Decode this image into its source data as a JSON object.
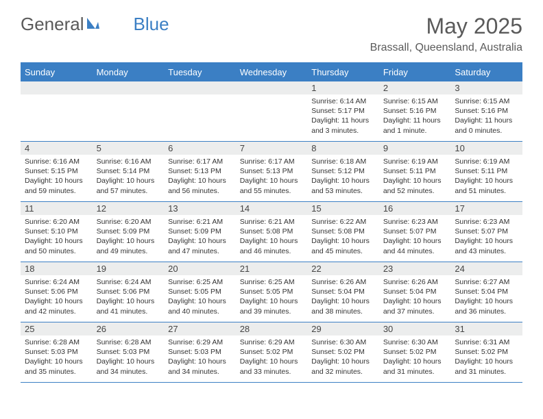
{
  "logo": {
    "text1": "General",
    "text2": "Blue"
  },
  "title": "May 2025",
  "location": "Brassall, Queensland, Australia",
  "colors": {
    "accent": "#3b7fc4",
    "header_text": "#5a5a5a",
    "daynum_bg": "#eceded",
    "body_text": "#333333",
    "page_bg": "#ffffff"
  },
  "typography": {
    "month_title_fontsize": 32,
    "location_fontsize": 16,
    "logo_fontsize": 26,
    "weekday_fontsize": 13,
    "daynum_fontsize": 13,
    "cell_fontsize": 10.5
  },
  "weekdays": [
    "Sunday",
    "Monday",
    "Tuesday",
    "Wednesday",
    "Thursday",
    "Friday",
    "Saturday"
  ],
  "weeks": [
    [
      {
        "num": "",
        "text": ""
      },
      {
        "num": "",
        "text": ""
      },
      {
        "num": "",
        "text": ""
      },
      {
        "num": "",
        "text": ""
      },
      {
        "num": "1",
        "text": "Sunrise: 6:14 AM\nSunset: 5:17 PM\nDaylight: 11 hours and 3 minutes."
      },
      {
        "num": "2",
        "text": "Sunrise: 6:15 AM\nSunset: 5:16 PM\nDaylight: 11 hours and 1 minute."
      },
      {
        "num": "3",
        "text": "Sunrise: 6:15 AM\nSunset: 5:16 PM\nDaylight: 11 hours and 0 minutes."
      }
    ],
    [
      {
        "num": "4",
        "text": "Sunrise: 6:16 AM\nSunset: 5:15 PM\nDaylight: 10 hours and 59 minutes."
      },
      {
        "num": "5",
        "text": "Sunrise: 6:16 AM\nSunset: 5:14 PM\nDaylight: 10 hours and 57 minutes."
      },
      {
        "num": "6",
        "text": "Sunrise: 6:17 AM\nSunset: 5:13 PM\nDaylight: 10 hours and 56 minutes."
      },
      {
        "num": "7",
        "text": "Sunrise: 6:17 AM\nSunset: 5:13 PM\nDaylight: 10 hours and 55 minutes."
      },
      {
        "num": "8",
        "text": "Sunrise: 6:18 AM\nSunset: 5:12 PM\nDaylight: 10 hours and 53 minutes."
      },
      {
        "num": "9",
        "text": "Sunrise: 6:19 AM\nSunset: 5:11 PM\nDaylight: 10 hours and 52 minutes."
      },
      {
        "num": "10",
        "text": "Sunrise: 6:19 AM\nSunset: 5:11 PM\nDaylight: 10 hours and 51 minutes."
      }
    ],
    [
      {
        "num": "11",
        "text": "Sunrise: 6:20 AM\nSunset: 5:10 PM\nDaylight: 10 hours and 50 minutes."
      },
      {
        "num": "12",
        "text": "Sunrise: 6:20 AM\nSunset: 5:09 PM\nDaylight: 10 hours and 49 minutes."
      },
      {
        "num": "13",
        "text": "Sunrise: 6:21 AM\nSunset: 5:09 PM\nDaylight: 10 hours and 47 minutes."
      },
      {
        "num": "14",
        "text": "Sunrise: 6:21 AM\nSunset: 5:08 PM\nDaylight: 10 hours and 46 minutes."
      },
      {
        "num": "15",
        "text": "Sunrise: 6:22 AM\nSunset: 5:08 PM\nDaylight: 10 hours and 45 minutes."
      },
      {
        "num": "16",
        "text": "Sunrise: 6:23 AM\nSunset: 5:07 PM\nDaylight: 10 hours and 44 minutes."
      },
      {
        "num": "17",
        "text": "Sunrise: 6:23 AM\nSunset: 5:07 PM\nDaylight: 10 hours and 43 minutes."
      }
    ],
    [
      {
        "num": "18",
        "text": "Sunrise: 6:24 AM\nSunset: 5:06 PM\nDaylight: 10 hours and 42 minutes."
      },
      {
        "num": "19",
        "text": "Sunrise: 6:24 AM\nSunset: 5:06 PM\nDaylight: 10 hours and 41 minutes."
      },
      {
        "num": "20",
        "text": "Sunrise: 6:25 AM\nSunset: 5:05 PM\nDaylight: 10 hours and 40 minutes."
      },
      {
        "num": "21",
        "text": "Sunrise: 6:25 AM\nSunset: 5:05 PM\nDaylight: 10 hours and 39 minutes."
      },
      {
        "num": "22",
        "text": "Sunrise: 6:26 AM\nSunset: 5:04 PM\nDaylight: 10 hours and 38 minutes."
      },
      {
        "num": "23",
        "text": "Sunrise: 6:26 AM\nSunset: 5:04 PM\nDaylight: 10 hours and 37 minutes."
      },
      {
        "num": "24",
        "text": "Sunrise: 6:27 AM\nSunset: 5:04 PM\nDaylight: 10 hours and 36 minutes."
      }
    ],
    [
      {
        "num": "25",
        "text": "Sunrise: 6:28 AM\nSunset: 5:03 PM\nDaylight: 10 hours and 35 minutes."
      },
      {
        "num": "26",
        "text": "Sunrise: 6:28 AM\nSunset: 5:03 PM\nDaylight: 10 hours and 34 minutes."
      },
      {
        "num": "27",
        "text": "Sunrise: 6:29 AM\nSunset: 5:03 PM\nDaylight: 10 hours and 34 minutes."
      },
      {
        "num": "28",
        "text": "Sunrise: 6:29 AM\nSunset: 5:02 PM\nDaylight: 10 hours and 33 minutes."
      },
      {
        "num": "29",
        "text": "Sunrise: 6:30 AM\nSunset: 5:02 PM\nDaylight: 10 hours and 32 minutes."
      },
      {
        "num": "30",
        "text": "Sunrise: 6:30 AM\nSunset: 5:02 PM\nDaylight: 10 hours and 31 minutes."
      },
      {
        "num": "31",
        "text": "Sunrise: 6:31 AM\nSunset: 5:02 PM\nDaylight: 10 hours and 31 minutes."
      }
    ]
  ]
}
